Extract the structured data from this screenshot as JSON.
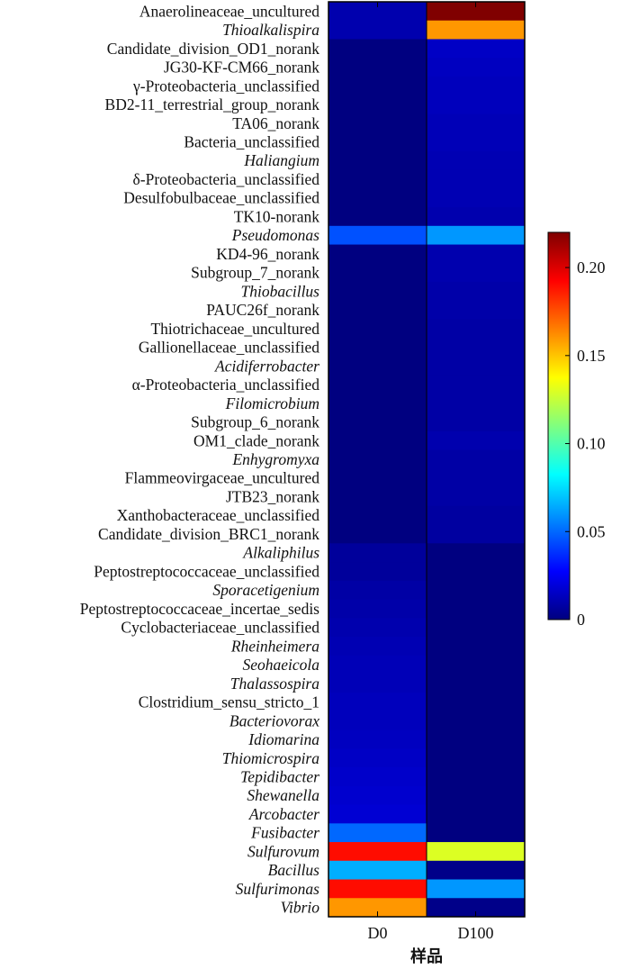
{
  "chart_data": {
    "type": "heatmap",
    "title": "",
    "xlabel": "样品",
    "ylabel": "",
    "columns": [
      "D0",
      "D100"
    ],
    "rows": [
      {
        "label": "Anaerolineaceae_uncultured",
        "italic": false,
        "values": [
          0.01,
          0.22
        ]
      },
      {
        "label": "Thioalkalispira",
        "italic": true,
        "values": [
          0.01,
          0.16
        ]
      },
      {
        "label": "Candidate_division_OD1_norank",
        "italic": false,
        "values": [
          0.0,
          0.015
        ]
      },
      {
        "label": "JG30-KF-CM66_norank",
        "italic": false,
        "values": [
          0.0,
          0.014
        ]
      },
      {
        "label": "γ-Proteobacteria_unclassified",
        "italic": false,
        "values": [
          0.0,
          0.013
        ]
      },
      {
        "label": "BD2-11_terrestrial_group_norank",
        "italic": false,
        "values": [
          0.0,
          0.013
        ]
      },
      {
        "label": "TA06_norank",
        "italic": false,
        "values": [
          0.0,
          0.012
        ]
      },
      {
        "label": "Bacteria_unclassified",
        "italic": false,
        "values": [
          0.0,
          0.012
        ]
      },
      {
        "label": "Haliangium",
        "italic": true,
        "values": [
          0.0,
          0.011
        ]
      },
      {
        "label": "δ-Proteobacteria_unclassified",
        "italic": false,
        "values": [
          0.0,
          0.011
        ]
      },
      {
        "label": "Desulfobulbaceae_unclassified",
        "italic": false,
        "values": [
          0.0,
          0.011
        ]
      },
      {
        "label": "TK10-norank",
        "italic": false,
        "values": [
          0.0,
          0.01
        ]
      },
      {
        "label": "Pseudomonas",
        "italic": true,
        "values": [
          0.045,
          0.06
        ]
      },
      {
        "label": "KD4-96_norank",
        "italic": false,
        "values": [
          0.0,
          0.01
        ]
      },
      {
        "label": "Subgroup_7_norank",
        "italic": false,
        "values": [
          0.0,
          0.01
        ]
      },
      {
        "label": "Thiobacillus",
        "italic": true,
        "values": [
          0.0,
          0.009
        ]
      },
      {
        "label": "PAUC26f_norank",
        "italic": false,
        "values": [
          0.0,
          0.009
        ]
      },
      {
        "label": "Thiotrichaceae_uncultured",
        "italic": false,
        "values": [
          0.0,
          0.008
        ]
      },
      {
        "label": "Gallionellaceae_unclassified",
        "italic": false,
        "values": [
          0.0,
          0.008
        ]
      },
      {
        "label": "Acidiferrobacter",
        "italic": true,
        "values": [
          0.0,
          0.008
        ]
      },
      {
        "label": "α-Proteobacteria_unclassified",
        "italic": false,
        "values": [
          0.0,
          0.008
        ]
      },
      {
        "label": "Filomicrobium",
        "italic": true,
        "values": [
          0.0,
          0.008
        ]
      },
      {
        "label": "Subgroup_6_norank",
        "italic": false,
        "values": [
          0.0,
          0.008
        ]
      },
      {
        "label": "OM1_clade_norank",
        "italic": false,
        "values": [
          0.0,
          0.01
        ]
      },
      {
        "label": "Enhygromyxa",
        "italic": true,
        "values": [
          0.0,
          0.008
        ]
      },
      {
        "label": "Flammeovirgaceae_uncultured",
        "italic": false,
        "values": [
          0.0,
          0.008
        ]
      },
      {
        "label": "JTB23_norank",
        "italic": false,
        "values": [
          0.0,
          0.008
        ]
      },
      {
        "label": "Xanthobacteraceae_unclassified",
        "italic": false,
        "values": [
          0.0,
          0.007
        ]
      },
      {
        "label": "Candidate_division_BRC1_norank",
        "italic": false,
        "values": [
          0.0,
          0.007
        ]
      },
      {
        "label": "Alkaliphilus",
        "italic": true,
        "values": [
          0.006,
          0.0
        ]
      },
      {
        "label": "Peptostreptococcaceae_unclassified",
        "italic": false,
        "values": [
          0.006,
          0.0
        ]
      },
      {
        "label": "Sporacetigenium",
        "italic": true,
        "values": [
          0.008,
          0.0
        ]
      },
      {
        "label": "Peptostreptococcaceae_incertae_sedis",
        "italic": false,
        "values": [
          0.009,
          0.0
        ]
      },
      {
        "label": "Cyclobacteriaceae_unclassified",
        "italic": false,
        "values": [
          0.01,
          0.0
        ]
      },
      {
        "label": "Rheinheimera",
        "italic": true,
        "values": [
          0.011,
          0.0
        ]
      },
      {
        "label": "Seohaeicola",
        "italic": true,
        "values": [
          0.012,
          0.0
        ]
      },
      {
        "label": "Thalassospira",
        "italic": true,
        "values": [
          0.012,
          0.0
        ]
      },
      {
        "label": "Clostridium_sensu_stricto_1",
        "italic": false,
        "values": [
          0.013,
          0.0
        ]
      },
      {
        "label": "Bacteriovorax",
        "italic": true,
        "values": [
          0.013,
          0.0
        ]
      },
      {
        "label": "Idiomarina",
        "italic": true,
        "values": [
          0.014,
          0.0
        ]
      },
      {
        "label": "Thiomicrospira",
        "italic": true,
        "values": [
          0.015,
          0.0
        ]
      },
      {
        "label": "Tepidibacter",
        "italic": true,
        "values": [
          0.016,
          0.0
        ]
      },
      {
        "label": "Shewanella",
        "italic": true,
        "values": [
          0.017,
          0.0
        ]
      },
      {
        "label": "Arcobacter",
        "italic": true,
        "values": [
          0.018,
          0.0
        ]
      },
      {
        "label": "Fusibacter",
        "italic": true,
        "values": [
          0.05,
          0.0
        ]
      },
      {
        "label": "Sulfurovum",
        "italic": true,
        "values": [
          0.19,
          0.13
        ]
      },
      {
        "label": "Bacillus",
        "italic": true,
        "values": [
          0.065,
          0.002
        ]
      },
      {
        "label": "Sulfurimonas",
        "italic": true,
        "values": [
          0.19,
          0.06
        ]
      },
      {
        "label": "Vibrio",
        "italic": true,
        "values": [
          0.16,
          0.002
        ]
      }
    ],
    "colorbar": {
      "min": 0,
      "max": 0.22,
      "ticks": [
        0,
        0.05,
        0.1,
        0.15,
        0.2
      ],
      "tick_labels": [
        "0",
        "0.05",
        "0.10",
        "0.15",
        "0.20"
      ],
      "colormap": "jet"
    }
  }
}
